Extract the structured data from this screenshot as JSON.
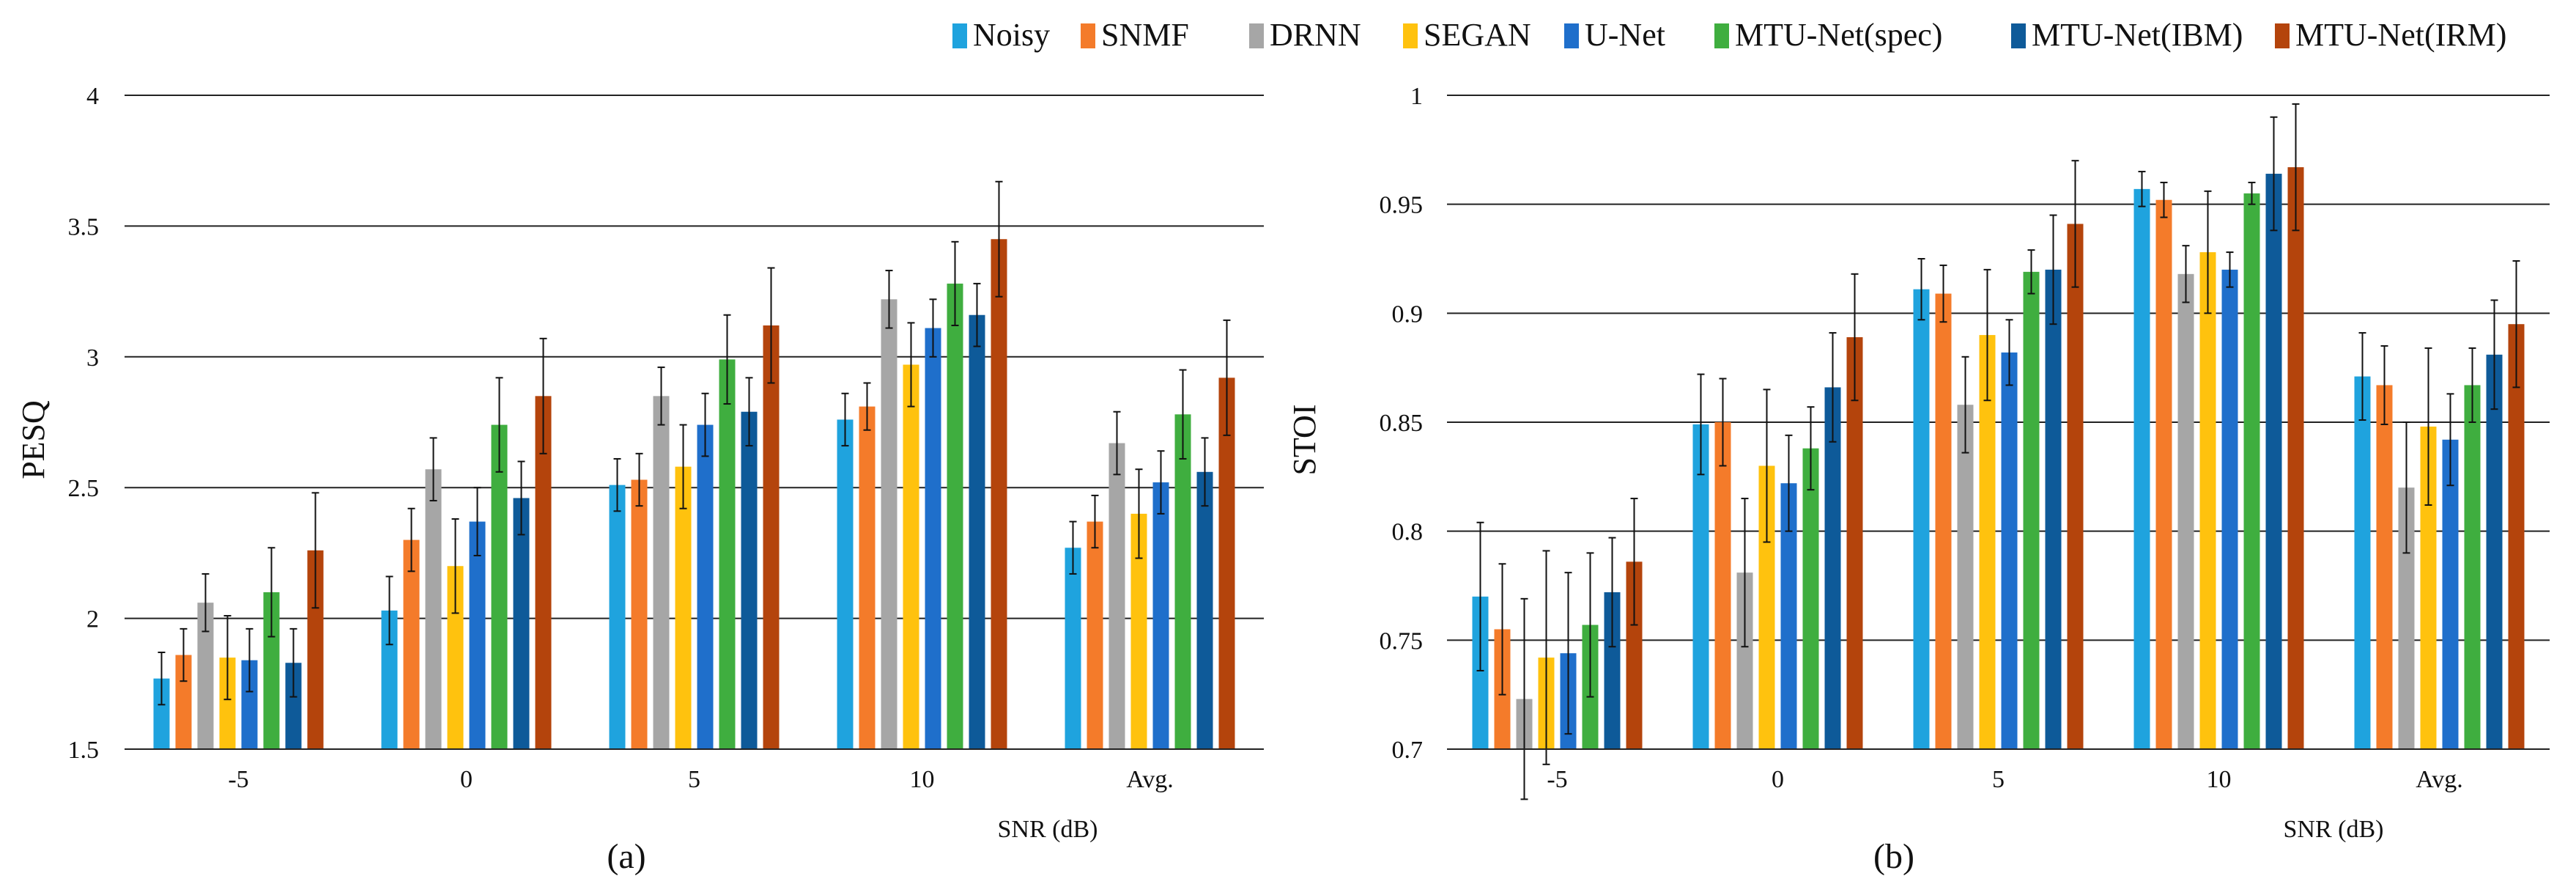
{
  "legend": [
    {
      "name": "Noisy",
      "color": "#1FA3DE"
    },
    {
      "name": "SNMF",
      "color": "#F47B2A"
    },
    {
      "name": "DRNN",
      "color": "#A6A6A6"
    },
    {
      "name": "SEGAN",
      "color": "#FFC20E"
    },
    {
      "name": "U-Net",
      "color": "#1F6FCB"
    },
    {
      "name": "MTU-Net(spec)",
      "color": "#3FAE3F"
    },
    {
      "name": "MTU-Net(IBM)",
      "color": "#0E5A99"
    },
    {
      "name": "MTU-Net(IRM)",
      "color": "#B4440C"
    }
  ],
  "chart_data": [
    {
      "type": "bar",
      "caption": "(a)",
      "title": "",
      "xlabel": "SNR (dB)",
      "ylabel": "PESQ",
      "ylim": [
        1.5,
        4
      ],
      "yticks": [
        "1.5",
        "2",
        "2.5",
        "3",
        "3.5",
        "4"
      ],
      "grid": true,
      "categories": [
        "-5",
        "0",
        "5",
        "10",
        "Avg."
      ],
      "series": [
        {
          "name": "Noisy",
          "values": [
            1.77,
            2.03,
            2.51,
            2.76,
            2.27
          ],
          "errors": [
            0.1,
            0.13,
            0.1,
            0.1,
            0.1
          ]
        },
        {
          "name": "SNMF",
          "values": [
            1.86,
            2.3,
            2.53,
            2.81,
            2.37
          ],
          "errors": [
            0.1,
            0.12,
            0.1,
            0.09,
            0.1
          ]
        },
        {
          "name": "DRNN",
          "values": [
            2.06,
            2.57,
            2.85,
            3.22,
            2.67
          ],
          "errors": [
            0.11,
            0.12,
            0.11,
            0.11,
            0.12
          ]
        },
        {
          "name": "SEGAN",
          "values": [
            1.85,
            2.2,
            2.58,
            2.97,
            2.4
          ],
          "errors": [
            0.16,
            0.18,
            0.16,
            0.16,
            0.17
          ]
        },
        {
          "name": "U-Net",
          "values": [
            1.84,
            2.37,
            2.74,
            3.11,
            2.52
          ],
          "errors": [
            0.12,
            0.13,
            0.12,
            0.11,
            0.12
          ]
        },
        {
          "name": "MTU-Net(spec)",
          "values": [
            2.1,
            2.74,
            2.99,
            3.28,
            2.78
          ],
          "errors": [
            0.17,
            0.18,
            0.17,
            0.16,
            0.17
          ]
        },
        {
          "name": "MTU-Net(IBM)",
          "values": [
            1.83,
            2.46,
            2.79,
            3.16,
            2.56
          ],
          "errors": [
            0.13,
            0.14,
            0.13,
            0.12,
            0.13
          ]
        },
        {
          "name": "MTU-Net(IRM)",
          "values": [
            2.26,
            2.85,
            3.12,
            3.45,
            2.92
          ],
          "errors": [
            0.22,
            0.22,
            0.22,
            0.22,
            0.22
          ]
        }
      ]
    },
    {
      "type": "bar",
      "caption": "(b)",
      "title": "",
      "xlabel": "SNR (dB)",
      "ylabel": "STOI",
      "ylim": [
        0.7,
        1
      ],
      "yticks": [
        "0.7",
        "0.75",
        "0.8",
        "0.85",
        "0.9",
        "0.95",
        "1"
      ],
      "grid": true,
      "categories": [
        "-5",
        "0",
        "5",
        "10",
        "Avg."
      ],
      "series": [
        {
          "name": "Noisy",
          "values": [
            0.77,
            0.849,
            0.911,
            0.957,
            0.871
          ],
          "errors": [
            0.034,
            0.023,
            0.014,
            0.008,
            0.02
          ]
        },
        {
          "name": "SNMF",
          "values": [
            0.755,
            0.85,
            0.909,
            0.952,
            0.867
          ],
          "errors": [
            0.03,
            0.02,
            0.013,
            0.008,
            0.018
          ]
        },
        {
          "name": "DRNN",
          "values": [
            0.723,
            0.781,
            0.858,
            0.918,
            0.82
          ],
          "errors": [
            0.046,
            0.034,
            0.022,
            0.013,
            0.03
          ]
        },
        {
          "name": "SEGAN",
          "values": [
            0.742,
            0.83,
            0.89,
            0.928,
            0.848
          ],
          "errors": [
            0.049,
            0.035,
            0.03,
            0.028,
            0.036
          ]
        },
        {
          "name": "U-Net",
          "values": [
            0.744,
            0.822,
            0.882,
            0.92,
            0.842
          ],
          "errors": [
            0.037,
            0.022,
            0.015,
            0.008,
            0.021
          ]
        },
        {
          "name": "MTU-Net(spec)",
          "values": [
            0.757,
            0.838,
            0.919,
            0.955,
            0.867
          ],
          "errors": [
            0.033,
            0.019,
            0.01,
            0.005,
            0.017
          ]
        },
        {
          "name": "MTU-Net(IBM)",
          "values": [
            0.772,
            0.866,
            0.92,
            0.964,
            0.881
          ],
          "errors": [
            0.025,
            0.025,
            0.025,
            0.026,
            0.025
          ]
        },
        {
          "name": "MTU-Net(IRM)",
          "values": [
            0.786,
            0.889,
            0.941,
            0.967,
            0.895
          ],
          "errors": [
            0.029,
            0.029,
            0.029,
            0.029,
            0.029
          ]
        }
      ]
    }
  ]
}
